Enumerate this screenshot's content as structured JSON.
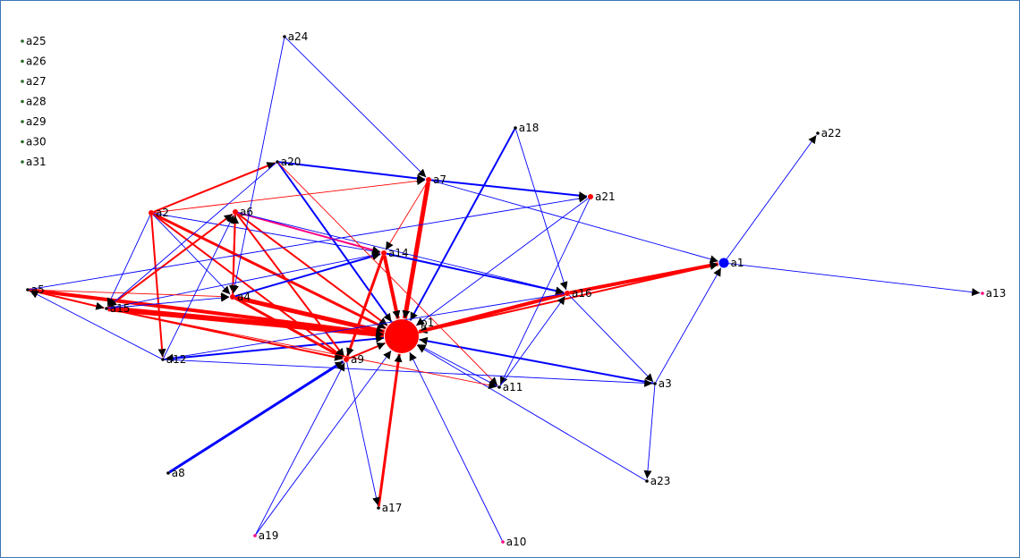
{
  "graph": {
    "colors": {
      "red": "#ff0000",
      "blue": "#0000ff",
      "pink": "#ff0080",
      "black": "#000000"
    },
    "isolates": [
      "a25",
      "a26",
      "a27",
      "a28",
      "a29",
      "a30",
      "a31"
    ],
    "nodes": [
      {
        "id": "p1",
        "label": "p1",
        "color": "red",
        "size": "large"
      },
      {
        "id": "a1",
        "label": "a1",
        "color": "blue",
        "size": "medium"
      },
      {
        "id": "a2",
        "label": "a2",
        "color": "red",
        "size": "small"
      },
      {
        "id": "a3",
        "label": "a3",
        "color": "black",
        "size": "tiny"
      },
      {
        "id": "a4",
        "label": "a4",
        "color": "red",
        "size": "small"
      },
      {
        "id": "a5",
        "label": "a5",
        "color": "black",
        "size": "tiny"
      },
      {
        "id": "a6",
        "label": "a6",
        "color": "red",
        "size": "small"
      },
      {
        "id": "a7",
        "label": "a7",
        "color": "red",
        "size": "small"
      },
      {
        "id": "a8",
        "label": "a8",
        "color": "black",
        "size": "tiny"
      },
      {
        "id": "a9",
        "label": "a9",
        "color": "red",
        "size": "small"
      },
      {
        "id": "a10",
        "label": "a10",
        "color": "pink",
        "size": "tiny"
      },
      {
        "id": "a11",
        "label": "a11",
        "color": "black",
        "size": "tiny"
      },
      {
        "id": "a12",
        "label": "a12",
        "color": "black",
        "size": "tiny"
      },
      {
        "id": "a13",
        "label": "a13",
        "color": "pink",
        "size": "tiny"
      },
      {
        "id": "a14",
        "label": "a14",
        "color": "red",
        "size": "small"
      },
      {
        "id": "a15",
        "label": "a15",
        "color": "black",
        "size": "tiny"
      },
      {
        "id": "a16",
        "label": "a16",
        "color": "red",
        "size": "small"
      },
      {
        "id": "a17",
        "label": "a17",
        "color": "black",
        "size": "tiny"
      },
      {
        "id": "a18",
        "label": "a18",
        "color": "black",
        "size": "tiny"
      },
      {
        "id": "a19",
        "label": "a19",
        "color": "pink",
        "size": "tiny"
      },
      {
        "id": "a20",
        "label": "a20",
        "color": "black",
        "size": "tiny"
      },
      {
        "id": "a21",
        "label": "a21",
        "color": "red",
        "size": "small"
      },
      {
        "id": "a22",
        "label": "a22",
        "color": "black",
        "size": "tiny"
      },
      {
        "id": "a23",
        "label": "a23",
        "color": "black",
        "size": "tiny"
      },
      {
        "id": "a24",
        "label": "a24",
        "color": "black",
        "size": "tiny"
      }
    ],
    "edges": [
      {
        "from": "a2",
        "to": "p1",
        "color": "red",
        "weight": 3
      },
      {
        "from": "a4",
        "to": "p1",
        "color": "red",
        "weight": 5
      },
      {
        "from": "a5",
        "to": "p1",
        "color": "red",
        "weight": 4
      },
      {
        "from": "a15",
        "to": "p1",
        "color": "red",
        "weight": 6
      },
      {
        "from": "a6",
        "to": "p1",
        "color": "red",
        "weight": 2
      },
      {
        "from": "a7",
        "to": "p1",
        "color": "red",
        "weight": 5
      },
      {
        "from": "a14",
        "to": "p1",
        "color": "red",
        "weight": 4
      },
      {
        "from": "a16",
        "to": "p1",
        "color": "red",
        "weight": 4
      },
      {
        "from": "a17",
        "to": "p1",
        "color": "red",
        "weight": 3
      },
      {
        "from": "a9",
        "to": "p1",
        "color": "red",
        "weight": 2
      },
      {
        "from": "a20",
        "to": "p1",
        "color": "blue",
        "weight": 2
      },
      {
        "from": "a18",
        "to": "p1",
        "color": "blue",
        "weight": 2
      },
      {
        "from": "a12",
        "to": "p1",
        "color": "blue",
        "weight": 2
      },
      {
        "from": "a3",
        "to": "p1",
        "color": "blue",
        "weight": 2
      },
      {
        "from": "a10",
        "to": "p1",
        "color": "blue",
        "weight": 1
      },
      {
        "from": "a11",
        "to": "p1",
        "color": "blue",
        "weight": 1
      },
      {
        "from": "a19",
        "to": "p1",
        "color": "blue",
        "weight": 1
      },
      {
        "from": "a23",
        "to": "p1",
        "color": "blue",
        "weight": 1
      },
      {
        "from": "a21",
        "to": "p1",
        "color": "blue",
        "weight": 1
      },
      {
        "from": "a8",
        "to": "a9",
        "color": "blue",
        "weight": 3
      },
      {
        "from": "a16",
        "to": "a1",
        "color": "red",
        "weight": 4
      },
      {
        "from": "p1",
        "to": "a1",
        "color": "red",
        "weight": 2
      },
      {
        "from": "a3",
        "to": "a1",
        "color": "blue",
        "weight": 1
      },
      {
        "from": "a7",
        "to": "a1",
        "color": "blue",
        "weight": 1
      },
      {
        "from": "a1",
        "to": "a22",
        "color": "blue",
        "weight": 1
      },
      {
        "from": "a1",
        "to": "a13",
        "color": "blue",
        "weight": 1
      },
      {
        "from": "a2",
        "to": "a20",
        "color": "red",
        "weight": 2
      },
      {
        "from": "a2",
        "to": "a7",
        "color": "red",
        "weight": 1
      },
      {
        "from": "a2",
        "to": "a12",
        "color": "red",
        "weight": 2
      },
      {
        "from": "a2",
        "to": "a9",
        "color": "red",
        "weight": 2
      },
      {
        "from": "a2",
        "to": "a14",
        "color": "blue",
        "weight": 1
      },
      {
        "from": "a2",
        "to": "a4",
        "color": "blue",
        "weight": 1
      },
      {
        "from": "a6",
        "to": "a4",
        "color": "red",
        "weight": 2
      },
      {
        "from": "a6",
        "to": "a9",
        "color": "red",
        "weight": 2
      },
      {
        "from": "a6",
        "to": "a14",
        "color": "pink",
        "weight": 2
      },
      {
        "from": "a6",
        "to": "a16",
        "color": "blue",
        "weight": 1
      },
      {
        "from": "a4",
        "to": "a9",
        "color": "red",
        "weight": 3
      },
      {
        "from": "a4",
        "to": "a14",
        "color": "blue",
        "weight": 2
      },
      {
        "from": "a4",
        "to": "a6",
        "color": "red",
        "weight": 2
      },
      {
        "from": "a15",
        "to": "a9",
        "color": "red",
        "weight": 2
      },
      {
        "from": "a15",
        "to": "a6",
        "color": "red",
        "weight": 2
      },
      {
        "from": "a15",
        "to": "a4",
        "color": "blue",
        "weight": 1
      },
      {
        "from": "a15",
        "to": "a14",
        "color": "blue",
        "weight": 1
      },
      {
        "from": "a5",
        "to": "a4",
        "color": "red",
        "weight": 1
      },
      {
        "from": "a5",
        "to": "a15",
        "color": "red",
        "weight": 2
      },
      {
        "from": "a5",
        "to": "a21",
        "color": "blue",
        "weight": 1
      },
      {
        "from": "a20",
        "to": "a7",
        "color": "blue",
        "weight": 2
      },
      {
        "from": "a20",
        "to": "a11",
        "color": "red",
        "weight": 1
      },
      {
        "from": "a20",
        "to": "a15",
        "color": "blue",
        "weight": 1
      },
      {
        "from": "a7",
        "to": "a21",
        "color": "blue",
        "weight": 2
      },
      {
        "from": "a7",
        "to": "a14",
        "color": "red",
        "weight": 1
      },
      {
        "from": "a24",
        "to": "a7",
        "color": "blue",
        "weight": 1
      },
      {
        "from": "a24",
        "to": "a4",
        "color": "blue",
        "weight": 1
      },
      {
        "from": "a18",
        "to": "a16",
        "color": "blue",
        "weight": 1
      },
      {
        "from": "a14",
        "to": "a16",
        "color": "blue",
        "weight": 2
      },
      {
        "from": "a14",
        "to": "a9",
        "color": "red",
        "weight": 3
      },
      {
        "from": "a16",
        "to": "a3",
        "color": "blue",
        "weight": 1
      },
      {
        "from": "a16",
        "to": "a12",
        "color": "blue",
        "weight": 1
      },
      {
        "from": "a21",
        "to": "a11",
        "color": "blue",
        "weight": 1
      },
      {
        "from": "a11",
        "to": "a16",
        "color": "blue",
        "weight": 1
      },
      {
        "from": "a12",
        "to": "a3",
        "color": "blue",
        "weight": 1
      },
      {
        "from": "a12",
        "to": "a6",
        "color": "blue",
        "weight": 1
      },
      {
        "from": "a3",
        "to": "a23",
        "color": "blue",
        "weight": 1
      },
      {
        "from": "a9",
        "to": "a17",
        "color": "blue",
        "weight": 1
      },
      {
        "from": "a19",
        "to": "a9",
        "color": "blue",
        "weight": 1
      },
      {
        "from": "a15",
        "to": "a11",
        "color": "red",
        "weight": 1
      },
      {
        "from": "a2",
        "to": "a15",
        "color": "blue",
        "weight": 1
      },
      {
        "from": "a12",
        "to": "a5",
        "color": "blue",
        "weight": 1
      }
    ]
  }
}
